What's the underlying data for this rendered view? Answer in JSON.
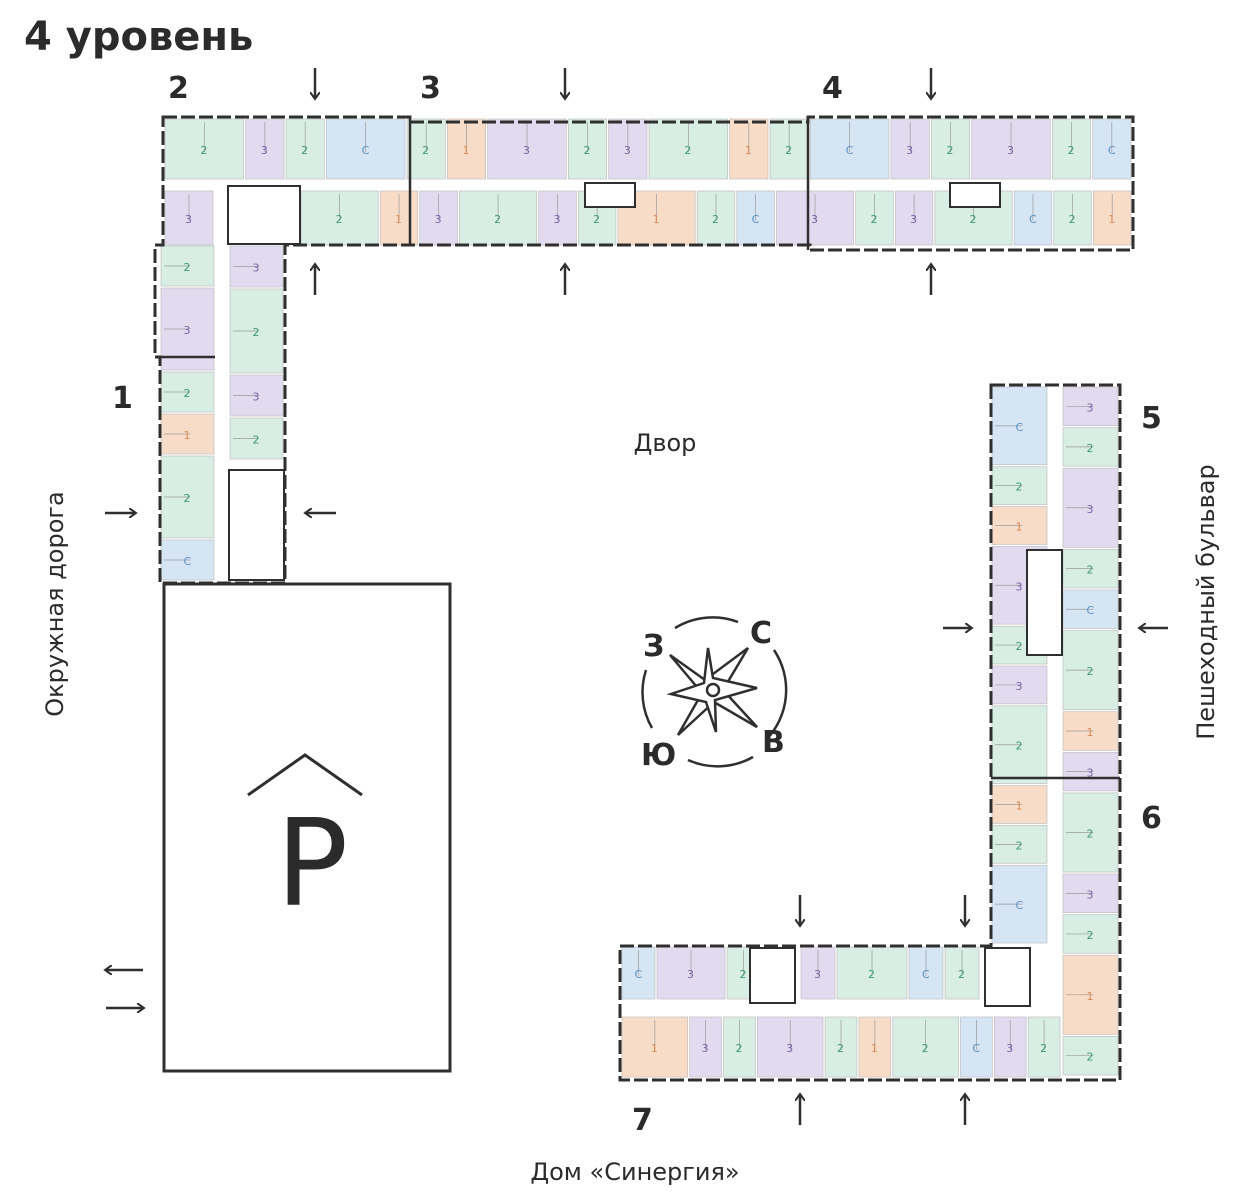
{
  "title": "4 уровень",
  "sections": [
    "1",
    "2",
    "3",
    "4",
    "5",
    "6",
    "7"
  ],
  "courtyard_label": "Двор",
  "streets": {
    "west": "Окружная дорога",
    "east": "Пешеходный бульвар",
    "south": "Дом «Синергия»"
  },
  "parking": {
    "letter": "P"
  },
  "compass": {
    "north": "С",
    "west": "З",
    "east": "В",
    "south": "Ю",
    "icon": "compass-rose-icon"
  },
  "unit_types": {
    "studio": {
      "label": "С",
      "color": "#d5e5f4"
    },
    "one_room": {
      "label": "1",
      "color": "#f7dcc8"
    },
    "two_room": {
      "label": "2",
      "color": "#d8ede3"
    },
    "three_room": {
      "label": "3",
      "color": "#e2dbef"
    }
  },
  "colors": {
    "walls": "#2f2f2f",
    "text": "#2b2b2b",
    "studio_label": "#5b8fc4",
    "two_label": "#3f9a72",
    "three_label": "#7a63a8",
    "one_label": "#d98a55"
  }
}
